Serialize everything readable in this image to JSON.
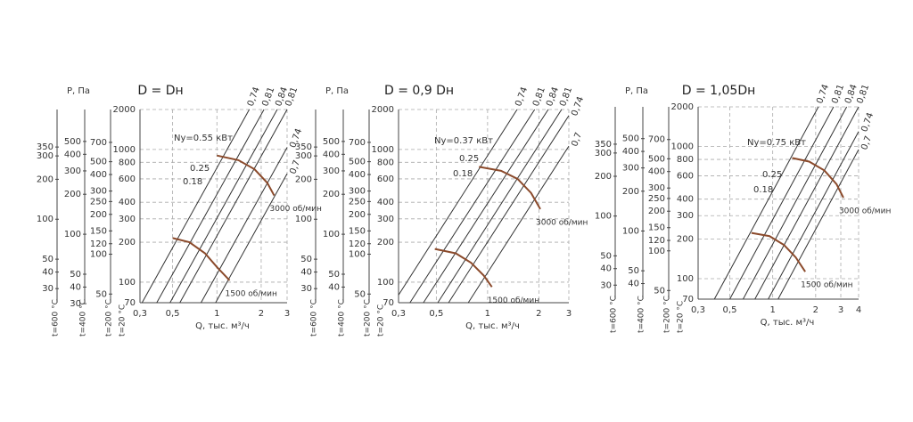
{
  "chart_data": [
    {
      "type": "line",
      "title": "D = Dн",
      "y_label": "P, Па",
      "x_label": "Q, тыс. м³/ч",
      "xlog": true,
      "ylog": true,
      "grid": true,
      "xlim": [
        0.3,
        3
      ],
      "ylim": [
        70,
        2000
      ],
      "xticks": [
        {
          "value": 0.3,
          "label": "0,3"
        },
        {
          "value": 0.5,
          "label": "0,5"
        },
        1,
        2,
        3
      ],
      "yticks": [
        70,
        100,
        200,
        300,
        400,
        600,
        800,
        1000,
        2000
      ],
      "y_axis_label": "t=20 °C",
      "extra_axes": [
        {
          "label": "t=600 °C",
          "ylim": [
            23.5,
            671
          ],
          "ticks": [
            30,
            40,
            50,
            100,
            200,
            300,
            350
          ]
        },
        {
          "label": "t=400 °C",
          "ylim": [
            30.5,
            870
          ],
          "ticks": [
            30,
            40,
            50,
            100,
            200,
            300,
            400,
            500
          ]
        },
        {
          "label": "t=200 °C",
          "ylim": [
            43,
            1240
          ],
          "ticks": [
            50,
            100,
            120,
            150,
            200,
            250,
            300,
            400,
            500,
            700
          ]
        }
      ],
      "series": [
        {
          "name": "1500 об/мин",
          "color": "#8b4a2b",
          "x": [
            0.5,
            0.65,
            0.83,
            1.0,
            1.22
          ],
          "values": [
            215,
            200,
            165,
            130,
            103
          ]
        },
        {
          "name": "3000 об/мин",
          "color": "#8b4a2b",
          "x": [
            1.0,
            1.4,
            1.8,
            2.2,
            2.45
          ],
          "values": [
            900,
            830,
            710,
            560,
            450
          ]
        }
      ],
      "efficiency_lines": [
        {
          "label": "0,74",
          "x": [
            0.31,
            1.66
          ],
          "values": [
            70,
            2000
          ]
        },
        {
          "label": "0,81",
          "x": [
            0.39,
            2.09
          ],
          "values": [
            70,
            2000
          ]
        },
        {
          "label": "0,84",
          "x": [
            0.48,
            2.57
          ],
          "values": [
            70,
            2000
          ]
        },
        {
          "label": "0,81",
          "x": [
            0.56,
            3
          ],
          "values": [
            70,
            2000
          ]
        },
        {
          "label": "0,74",
          "x": [
            0.78,
            3
          ],
          "values": [
            70,
            1035
          ]
        },
        {
          "label": "0,7",
          "x": [
            0.98,
            3
          ],
          "values": [
            70,
            656
          ]
        }
      ],
      "annotations": [
        "Ny=0.55 кВт",
        "0.25",
        "0.18"
      ]
    },
    {
      "type": "line",
      "title": "D = 0,9 Dн",
      "y_label": "P, Па",
      "x_label": "Q, тыс. м³/ч",
      "xlog": true,
      "ylog": true,
      "grid": true,
      "xlim": [
        0.3,
        3
      ],
      "ylim": [
        70,
        2000
      ],
      "xticks": [
        {
          "value": 0.3,
          "label": "0,3"
        },
        {
          "value": 0.5,
          "label": "0,5"
        },
        1,
        2,
        3
      ],
      "yticks": [
        70,
        100,
        200,
        300,
        400,
        600,
        800,
        1000,
        2000
      ],
      "y_axis_label": "t=20 °C",
      "extra_axes": [
        {
          "label": "t=600 °C",
          "ylim": [
            23.5,
            671
          ],
          "ticks": [
            30,
            40,
            50,
            100,
            200,
            300,
            350
          ]
        },
        {
          "label": "t=400 °C",
          "ylim": [
            30.5,
            870
          ],
          "ticks": [
            40,
            50,
            100,
            200,
            300,
            400,
            500
          ]
        },
        {
          "label": "t=200 °C",
          "ylim": [
            43,
            1240
          ],
          "ticks": [
            50,
            100,
            120,
            150,
            200,
            250,
            300,
            400,
            500,
            700
          ]
        }
      ],
      "series": [
        {
          "name": "1500 об/мин",
          "color": "#8b4a2b",
          "x": [
            0.49,
            0.65,
            0.8,
            0.95,
            1.06
          ],
          "values": [
            178,
            165,
            140,
            112,
            92
          ]
        },
        {
          "name": "3000 об/мин",
          "color": "#8b4a2b",
          "x": [
            0.89,
            1.2,
            1.5,
            1.8,
            2.04
          ],
          "values": [
            740,
            690,
            600,
            470,
            355
          ]
        }
      ],
      "efficiency_lines": [
        {
          "label": "0,74",
          "x": [
            0.3,
            1.49
          ],
          "values": [
            80,
            2000
          ]
        },
        {
          "label": "0,81",
          "x": [
            0.35,
            1.89
          ],
          "values": [
            70,
            2000
          ]
        },
        {
          "label": "0,84",
          "x": [
            0.42,
            2.27
          ],
          "values": [
            70,
            2000
          ]
        },
        {
          "label": "0,81",
          "x": [
            0.51,
            2.72
          ],
          "values": [
            70,
            2000
          ]
        },
        {
          "label": "0,74",
          "x": [
            0.59,
            3
          ],
          "values": [
            70,
            1800
          ]
        },
        {
          "label": "0,7",
          "x": [
            0.77,
            3
          ],
          "values": [
            70,
            1060
          ]
        }
      ],
      "annotations": [
        "Ny=0.37 кВт",
        "0.25",
        "0.18"
      ]
    },
    {
      "type": "line",
      "title": "D =  1,05Dн",
      "y_label": "P, Па",
      "x_label": "Q, тыс. м³/ч",
      "xlog": true,
      "ylog": true,
      "grid": true,
      "xlim": [
        0.3,
        4
      ],
      "ylim": [
        70,
        2000
      ],
      "xticks": [
        {
          "value": 0.3,
          "label": "0,3"
        },
        {
          "value": 0.5,
          "label": "0,5"
        },
        1,
        2,
        3,
        4
      ],
      "yticks": [
        70,
        100,
        200,
        300,
        400,
        600,
        800,
        1000,
        2000
      ],
      "y_axis_label": "t=20 °C",
      "extra_axes": [
        {
          "label": "t=600 °C",
          "ylim": [
            23.5,
            671
          ],
          "ticks": [
            30,
            40,
            50,
            100,
            200,
            300,
            350
          ]
        },
        {
          "label": "t=400 °C",
          "ylim": [
            30.5,
            870
          ],
          "ticks": [
            40,
            50,
            100,
            200,
            300,
            400,
            500
          ]
        },
        {
          "label": "t=200 °C",
          "ylim": [
            43,
            1240
          ],
          "ticks": [
            50,
            100,
            120,
            150,
            200,
            250,
            300,
            400,
            500,
            700
          ]
        }
      ],
      "series": [
        {
          "name": "1500 об/мин",
          "color": "#8b4a2b",
          "x": [
            0.71,
            0.95,
            1.2,
            1.45,
            1.69
          ],
          "values": [
            222,
            210,
            180,
            145,
            113
          ]
        },
        {
          "name": "3000 об/мин",
          "color": "#8b4a2b",
          "x": [
            1.37,
            1.8,
            2.3,
            2.8,
            3.13
          ],
          "values": [
            820,
            770,
            660,
            520,
            410
          ]
        }
      ],
      "efficiency_lines": [
        {
          "label": "0,74",
          "x": [
            0.39,
            2.09
          ],
          "values": [
            70,
            2000
          ]
        },
        {
          "label": "0,81",
          "x": [
            0.5,
            2.67
          ],
          "values": [
            70,
            2000
          ]
        },
        {
          "label": "0,84",
          "x": [
            0.62,
            3.3
          ],
          "values": [
            70,
            2000
          ]
        },
        {
          "label": "0,81",
          "x": [
            0.75,
            4
          ],
          "values": [
            70,
            2000
          ]
        },
        {
          "label": "0,74",
          "x": [
            0.93,
            4
          ],
          "values": [
            70,
            1300
          ]
        },
        {
          "label": "0,7",
          "x": [
            1.09,
            4
          ],
          "values": [
            70,
            950
          ]
        }
      ],
      "annotations": [
        "Ny=0.75 кВт",
        "0.25",
        "0.18"
      ]
    }
  ]
}
